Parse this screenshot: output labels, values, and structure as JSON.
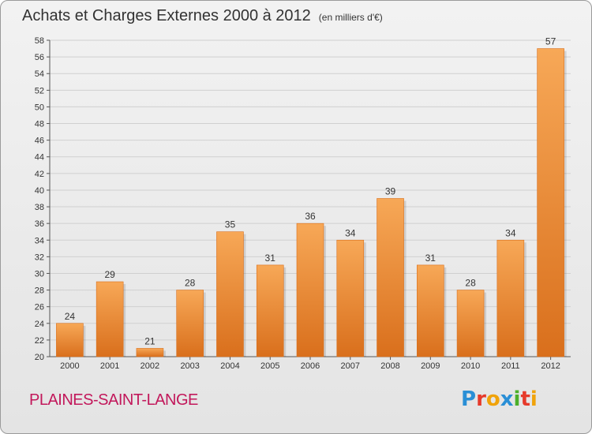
{
  "header": {
    "title": "Achats et Charges Externes 2000 à 2012",
    "unit": "(en milliers d'€)"
  },
  "footer": {
    "commune": "PLAINES-SAINT-LANGE",
    "logo": "Proxiti"
  },
  "colors": {
    "bar_light": "#f7a857",
    "bar_dark": "#d96f1c",
    "title": "#333333",
    "commune": "#c2185b",
    "logo_letters": [
      "#2a8fd6",
      "#e63a2b",
      "#f0a30a",
      "#2a8fd6",
      "#4caf2a",
      "#e63a2b",
      "#f0a30a"
    ]
  },
  "chart_data": {
    "type": "bar",
    "title": "Achats et Charges Externes 2000 à 2012",
    "subtitle": "(en milliers d'€)",
    "xlabel": "",
    "ylabel": "",
    "categories": [
      "2000",
      "2001",
      "2002",
      "2003",
      "2004",
      "2005",
      "2006",
      "2007",
      "2008",
      "2009",
      "2010",
      "2011",
      "2012"
    ],
    "values": [
      24,
      29,
      21,
      28,
      35,
      31,
      36,
      34,
      39,
      31,
      28,
      34,
      57
    ],
    "ylim": [
      20,
      58
    ],
    "yticks": [
      "20",
      "22",
      "24",
      "26",
      "28",
      "30",
      "32",
      "34",
      "36",
      "38",
      "40",
      "42",
      "44",
      "46",
      "48",
      "50",
      "52",
      "54",
      "56",
      "58"
    ],
    "grid": true
  }
}
